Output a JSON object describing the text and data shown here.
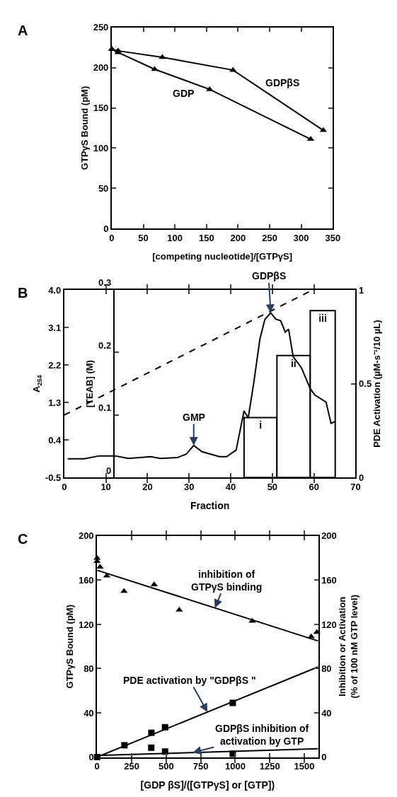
{
  "chart_data": [
    {
      "type": "line",
      "title": "A",
      "xlabel": "[competing nucleotide]/[GTPγS]",
      "ylabel": "GTPγS Bound (pM)",
      "xlim": [
        0,
        350
      ],
      "ylim": [
        0,
        250
      ],
      "xticks": [
        0,
        50,
        100,
        150,
        200,
        250,
        300,
        350
      ],
      "yticks": [
        0,
        50,
        100,
        150,
        200,
        250
      ],
      "marker": "triangle",
      "series": [
        {
          "name": "GDPβS",
          "color": "#000000",
          "x": [
            0,
            10,
            80,
            192,
            335
          ],
          "values": [
            223,
            221,
            213,
            197,
            122
          ]
        },
        {
          "name": "GDP",
          "color": "#000000",
          "x": [
            0,
            10,
            68,
            155,
            315
          ],
          "values": [
            223,
            219,
            198,
            173,
            111
          ]
        }
      ]
    },
    {
      "type": "line",
      "title": "B",
      "xlabel": "Fraction",
      "ylabel": "A$_{254}$",
      "y2label": "[TEAB] (M)",
      "y3label": "PDE Activation (µM-s⁻¹/10 µL)",
      "xlim": [
        0,
        70
      ],
      "xticks": [
        0,
        10,
        20,
        30,
        40,
        50,
        60,
        70
      ],
      "ylim": [
        -0.5,
        4.0
      ],
      "yticks": [
        -0.5,
        0.4,
        1.3,
        2.2,
        3.1,
        {
          "value": 4.0,
          "label": "4.0"
        }
      ],
      "y2lim": [
        0,
        0.3
      ],
      "y2ticks": [
        0,
        0.1,
        0.2,
        0.3
      ],
      "y3lim": [
        0,
        1
      ],
      "y3ticks": [
        0,
        0.5,
        1
      ],
      "series": [
        {
          "color": "#000000",
          "x": [
            0.8,
            4.8,
            8.4,
            12.2,
            15.4,
            20.8,
            23.1,
            27.2,
            29.3,
            31.1,
            33.1,
            37.3,
            39.0,
            41.3,
            43.2,
            44.2,
            45.5,
            47.0,
            48.2,
            49.6,
            50.8,
            52.0,
            53.1,
            53.9,
            55.0,
            57.0,
            59.1,
            60.2,
            62.9,
            64.1,
            65.0
          ],
          "values": [
            -0.05,
            -0.05,
            0.02,
            0.02,
            -0.04,
            0,
            -0.04,
            -0.02,
            0.06,
            0.27,
            0.12,
            0,
            0,
            0.16,
            1.1,
            0.93,
            1.75,
            2.82,
            3.29,
            3.45,
            3.3,
            3.26,
            2.99,
            3.06,
            2.4,
            2.13,
            1.63,
            1.48,
            1.31,
            0.8,
            0.84
          ]
        },
        {
          "color": "#000000",
          "axis": "y2",
          "line_style": "dashed",
          "x": [
            0,
            59.7
          ],
          "values": [
            0.1,
            0.3
          ]
        },
        {
          "type": "histogram",
          "color": "#ffffff",
          "axis": "y3",
          "bins": [
            43.2,
            51.1,
            59.1,
            65.1
          ],
          "values": [
            0.32,
            0.65,
            0.89
          ],
          "value_labels": [
            "i",
            "ii",
            "iii"
          ]
        }
      ],
      "annotations": [
        {
          "text": "GMP",
          "x": 31.1,
          "y": 0.27
        },
        {
          "text": "GDPβS",
          "x": 49.6,
          "y": 3.45
        }
      ]
    },
    {
      "type": "scatter",
      "title": "C",
      "xlabel": "[GDP βS]/([GTPγS] or [GTP])",
      "ylabel": "GTPγS Bound (pM)",
      "y2label": "Inhibition or Activation\n(% of 100 nM GTP level)",
      "xlim": [
        0,
        1600
      ],
      "xticks": [
        0,
        250,
        500,
        750,
        1000,
        1250,
        1500
      ],
      "ylim": [
        0,
        200
      ],
      "yticks": [
        0,
        40,
        80,
        120,
        160,
        200
      ],
      "y2lim": [
        0,
        200
      ],
      "y2ticks": [
        0,
        40,
        80,
        120,
        160,
        200
      ],
      "series": [
        {
          "color": "#000000",
          "marker": "triangle",
          "x": [
            0,
            0,
            21,
            70,
            195,
            413,
            595,
            1123,
            1550,
            1591
          ],
          "values": [
            180,
            177,
            172,
            164,
            150,
            156,
            133,
            123,
            109,
            113
          ]
        },
        {
          "type": "line",
          "color": "#000000",
          "x": [
            0,
            1600
          ],
          "values": [
            169,
            105
          ]
        },
        {
          "color": "#000000",
          "marker": "square",
          "axis": "y2",
          "x": [
            198,
            393,
            492,
            982
          ],
          "values": [
            10.7,
            22,
            27,
            49
          ]
        },
        {
          "type": "line",
          "color": "#000000",
          "axis": "y2",
          "x": [
            0,
            1600
          ],
          "values": [
            0,
            81.6
          ]
        },
        {
          "color": "#000000",
          "marker": "square",
          "axis": "y2",
          "x": [
            0,
            392,
            492,
            982
          ],
          "values": [
            0,
            8.5,
            5,
            3
          ]
        },
        {
          "type": "line",
          "color": "#000000",
          "axis": "y2",
          "x": [
            0,
            1600
          ],
          "values": [
            1.5,
            7.5
          ]
        }
      ],
      "annotations": [
        {
          "text": "inhibition of\nGTPγS binding",
          "x": 853,
          "y": 134.9
        },
        {
          "text": "PDE activation by \"GDPβS \"",
          "x": 799,
          "y": 40.7
        },
        {
          "text": "GDPβS inhibition of\nactivation by GTP",
          "x": 692,
          "y": 4.1
        }
      ]
    }
  ]
}
